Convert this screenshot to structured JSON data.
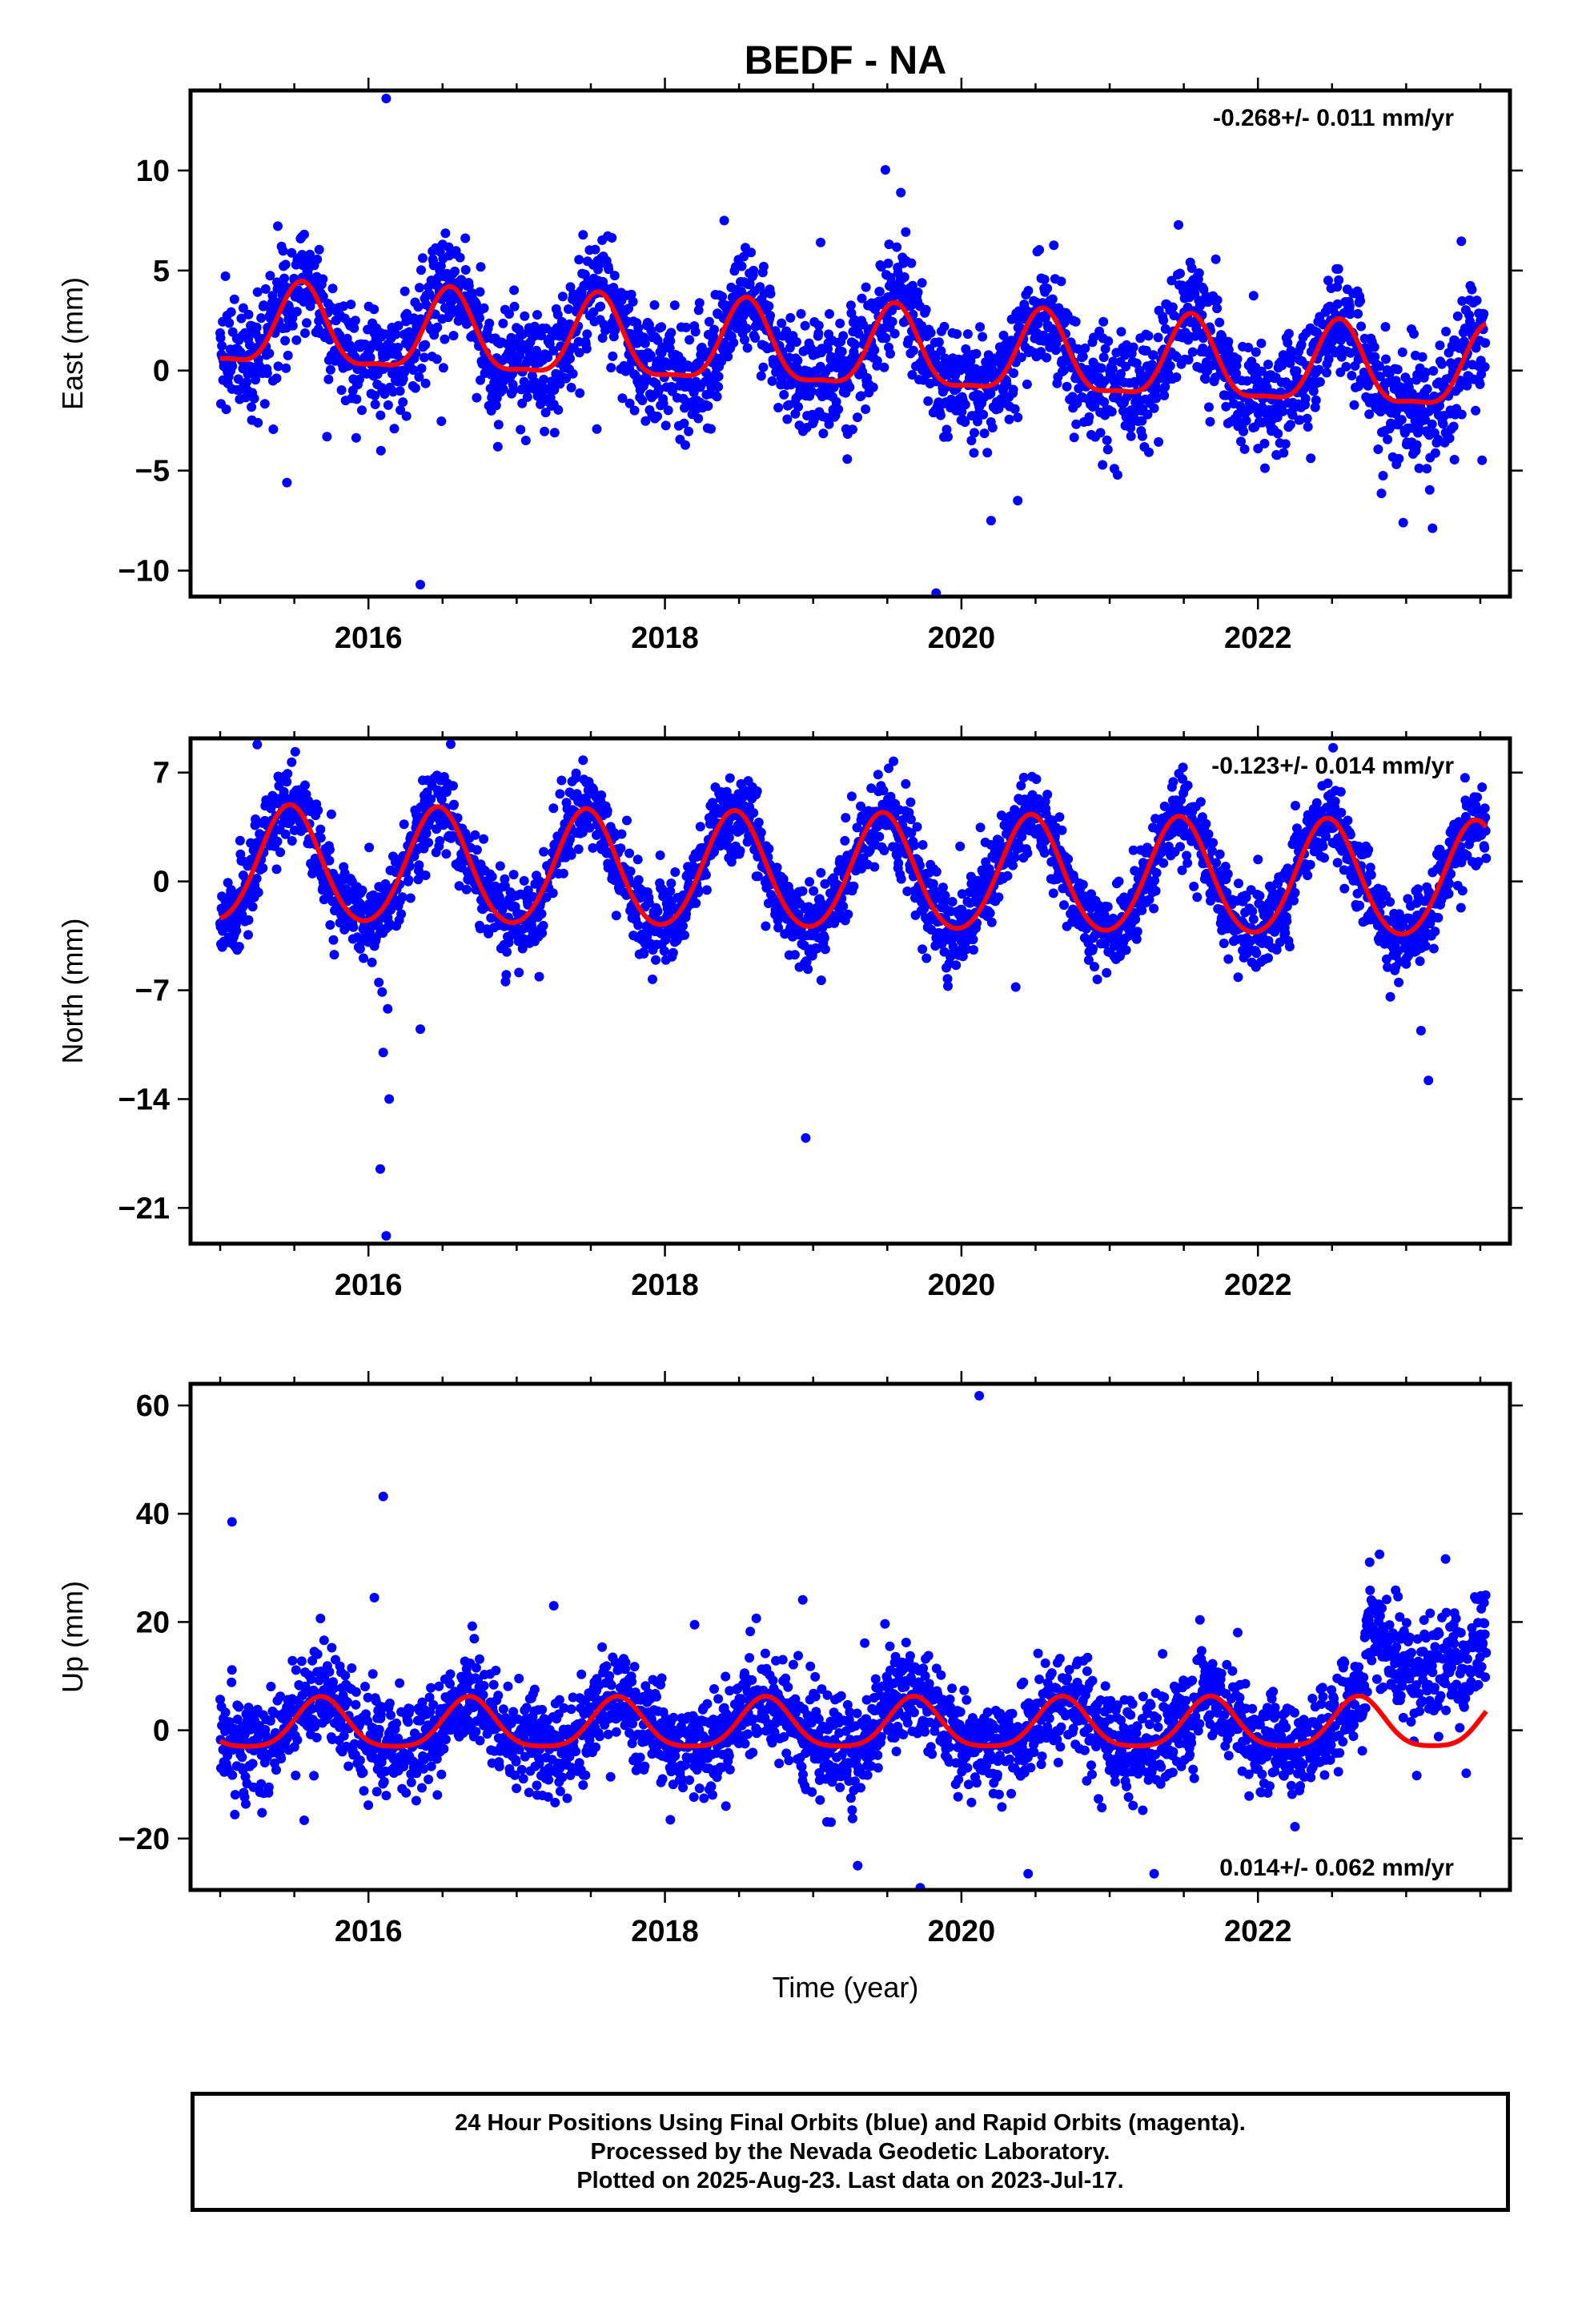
{
  "title": "BEDF - NA",
  "colors": {
    "points": "#0000ff",
    "fit": "#ff0000",
    "axis": "#000000"
  },
  "x_axis": {
    "label": "Time (year)",
    "range": [
      2014.8,
      2023.7
    ],
    "ticks": [
      2016,
      2018,
      2020,
      2022
    ]
  },
  "panels": [
    {
      "id": "east",
      "ylabel": "East (mm)",
      "rate": "-0.268+/- 0.011 mm/yr",
      "rate_pos": "top-right",
      "ylim": [
        -11.3,
        14.0
      ],
      "yticks": [
        10,
        5,
        0,
        -5,
        -10
      ],
      "ytick_labels": [
        "10",
        "5",
        "0",
        "−5",
        "−10"
      ]
    },
    {
      "id": "north",
      "ylabel": "North (mm)",
      "rate": "-0.123+/- 0.014 mm/yr",
      "rate_pos": "top-right",
      "ylim": [
        -23.3,
        9.2
      ],
      "yticks": [
        7,
        0,
        -7,
        -14,
        -21
      ],
      "ytick_labels": [
        "7",
        "0",
        "−7",
        "−14",
        "−21"
      ]
    },
    {
      "id": "up",
      "ylabel": "Up (mm)",
      "rate": "0.014+/- 0.062 mm/yr",
      "rate_pos": "bottom-right",
      "ylim": [
        -29.5,
        64.0
      ],
      "yticks": [
        60,
        40,
        20,
        0,
        -20
      ],
      "ytick_labels": [
        "60",
        "40",
        "20",
        "0",
        "−20"
      ]
    }
  ],
  "chart_data": {
    "type": "scatter",
    "title": "BEDF - NA",
    "xlabel": "Time (year)",
    "x_range": [
      2015.0,
      2023.54
    ],
    "series": [
      {
        "name": "East (mm)",
        "fit": {
          "trend_mm_per_yr": -0.268,
          "offset_mm": 0.95,
          "annual_amp_mm": 2.0,
          "annual_peak": 0.55,
          "semiannual_amp_mm": 0.6
        },
        "scatter_sd_mm": 1.4,
        "outliers": [
          [
            2016.12,
            13.6
          ],
          [
            2016.35,
            -10.7
          ],
          [
            2016.5,
            6.3
          ],
          [
            2018.4,
            7.5
          ],
          [
            2019.05,
            6.4
          ],
          [
            2020.2,
            -7.5
          ],
          [
            2020.38,
            -6.5
          ],
          [
            2022.98,
            -7.6
          ],
          [
            2015.45,
            -5.6
          ]
        ]
      },
      {
        "name": "North (mm)",
        "fit": {
          "trend_mm_per_yr": -0.123,
          "offset_mm": 0.5,
          "annual_amp_mm": 3.7,
          "annual_peak": 0.47,
          "semiannual_amp_mm": 0.3
        },
        "scatter_sd_mm": 1.3,
        "outliers": [
          [
            2016.08,
            -18.5
          ],
          [
            2016.12,
            -22.8
          ],
          [
            2016.14,
            -14.0
          ],
          [
            2016.1,
            -11.0
          ],
          [
            2016.07,
            -6.5
          ],
          [
            2016.13,
            -8.2
          ],
          [
            2016.35,
            -9.5
          ],
          [
            2018.95,
            -16.5
          ],
          [
            2015.25,
            8.8
          ],
          [
            2023.1,
            -9.6
          ],
          [
            2023.15,
            -12.8
          ],
          [
            2022.95,
            -6.5
          ]
        ]
      },
      {
        "name": "Up (mm)",
        "fit": {
          "trend_mm_per_yr": 0.014,
          "offset_mm": 0.7,
          "annual_amp_mm": 4.6,
          "annual_peak": 0.68,
          "semiannual_amp_mm": 1.0
        },
        "scatter_sd_mm": 4.5,
        "step": {
          "at": 2022.72,
          "offset_mm": 14.5
        },
        "outliers": [
          [
            2015.08,
            38.5
          ],
          [
            2016.1,
            43.2
          ],
          [
            2016.04,
            24.5
          ],
          [
            2018.93,
            24.1
          ],
          [
            2020.12,
            61.8
          ],
          [
            2019.55,
            12.5
          ],
          [
            2018.2,
            19.5
          ],
          [
            2021.3,
            -26.5
          ],
          [
            2020.45,
            -26.5
          ],
          [
            2019.3,
            -25.0
          ],
          [
            2017.25,
            23.0
          ],
          [
            2022.82,
            32.5
          ]
        ]
      }
    ]
  },
  "footer": {
    "line1": "24 Hour Positions Using Final Orbits (blue) and Rapid Orbits (magenta).",
    "line2": "Processed by the Nevada Geodetic Laboratory.",
    "line3": "Plotted on 2025-Aug-23. Last data on 2023-Jul-17."
  }
}
